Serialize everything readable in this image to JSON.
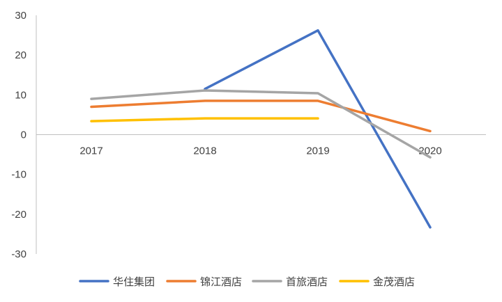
{
  "chart_data": {
    "type": "line",
    "title": "",
    "xlabel": "",
    "ylabel": "",
    "categories": [
      "2017",
      "2018",
      "2019",
      "2020"
    ],
    "ylim": [
      -30,
      30
    ],
    "yticks": [
      30,
      20,
      10,
      0,
      -10,
      -20,
      -30
    ],
    "ytick_labels": [
      "30",
      "20",
      "10",
      "0",
      "-10",
      "-20",
      "-30"
    ],
    "grid": false,
    "legend_position": "bottom",
    "series": [
      {
        "name": "华住集团",
        "color": "#4472C4",
        "values": [
          null,
          11.5,
          26.2,
          -23.3
        ]
      },
      {
        "name": "锦江酒店",
        "color": "#ED7D31",
        "values": [
          7.0,
          8.5,
          8.5,
          0.9
        ]
      },
      {
        "name": "首旅酒店",
        "color": "#A5A5A5",
        "values": [
          9.0,
          11.1,
          10.4,
          -5.7
        ]
      },
      {
        "name": "金茂酒店",
        "color": "#FFC000",
        "values": [
          3.4,
          4.1,
          4.1,
          null
        ]
      }
    ]
  }
}
